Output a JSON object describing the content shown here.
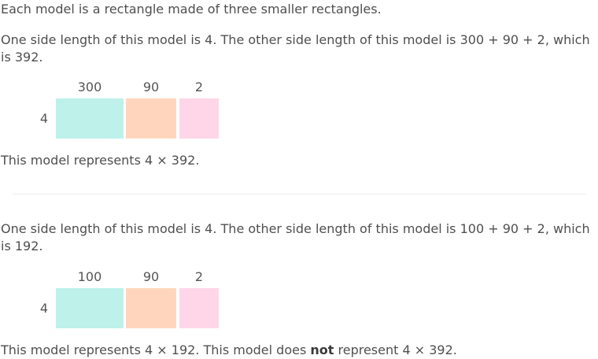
{
  "intro": "Each model is a rectangle made of three smaller rectangles.",
  "model1": {
    "description": "One side length of this model is 4. The other side length of this model is 300 + 90 + 2, which is 392.",
    "side": "4",
    "parts": [
      "300",
      "90",
      "2"
    ],
    "conclusion": "This model represents 4 × 392."
  },
  "model2": {
    "description": "One side length of this model is 4. The other side length of this model is 100 + 90 + 2, which is 192.",
    "side": "4",
    "parts": [
      "100",
      "90",
      "2"
    ],
    "conclusion_pre": "This model represents 4 × 192. This model does ",
    "conclusion_bold": "not",
    "conclusion_post": " represent 4 × 392."
  },
  "colors": {
    "rect_1": "#bdf1ea",
    "rect_2": "#ffd6bd",
    "rect_3": "#ffd6e7"
  }
}
